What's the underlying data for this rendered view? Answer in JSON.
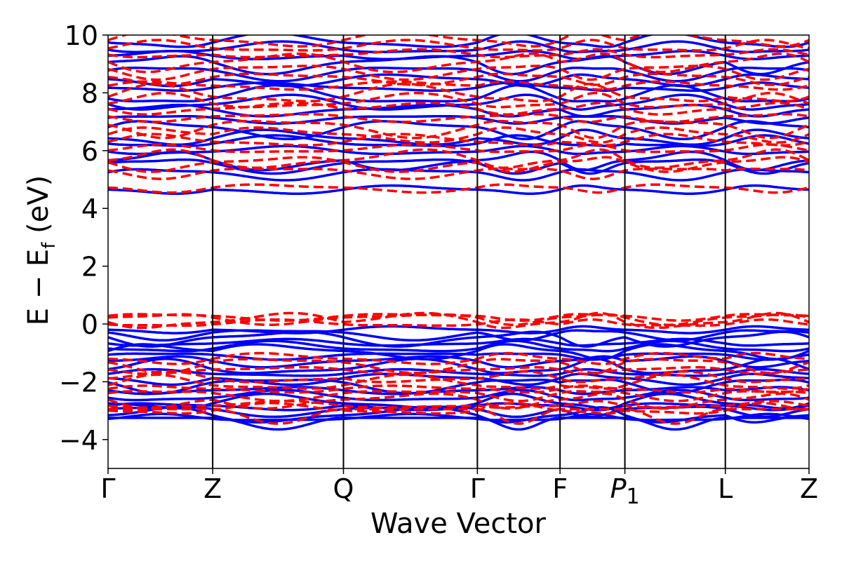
{
  "chart_data": {
    "type": "line",
    "title": "",
    "xlabel": "Wave Vector",
    "ylabel": "E − E_f (eV)",
    "ylabel_main": "E  −  E",
    "ylabel_sub": "f",
    "ylabel_tail": " (eV)",
    "ylim": [
      -5,
      10
    ],
    "xlim": [
      0,
      6.7
    ],
    "yticks": [
      -4,
      -2,
      0,
      2,
      4,
      6,
      8,
      10
    ],
    "ytick_labels": [
      "−4",
      "−2",
      "0",
      "2",
      "4",
      "6",
      "8",
      "10"
    ],
    "kpoints": [
      {
        "label": "Γ",
        "sub": "",
        "x": 0
      },
      {
        "label": "Z",
        "sub": "",
        "x": 1
      },
      {
        "label": "Q",
        "sub": "",
        "x": 2.25
      },
      {
        "label": "Γ",
        "sub": "",
        "x": 3.53
      },
      {
        "label": "F",
        "sub": "",
        "x": 4.32
      },
      {
        "label": "P",
        "sub": "1",
        "x": 4.94
      },
      {
        "label": "L",
        "sub": "",
        "x": 5.9
      },
      {
        "label": "Z",
        "sub": "",
        "x": 6.7
      }
    ],
    "grid": false,
    "legend": "none",
    "series": [
      {
        "style": "solid",
        "color": "#0000ff",
        "conduction_levels": [
          4.65,
          5.2,
          5.5,
          5.65,
          6.0,
          6.3,
          6.45,
          6.75,
          7.1,
          7.4,
          7.65,
          7.9,
          8.2,
          8.45,
          8.7,
          9.0,
          9.3,
          9.55,
          9.8
        ],
        "valence_levels": [
          -0.2,
          -0.35,
          -0.5,
          -0.65,
          -0.8,
          -0.95,
          -1.1,
          -1.3,
          -1.5,
          -1.7,
          -1.9,
          -2.1,
          -2.3,
          -2.5,
          -2.7,
          -2.85,
          -3.0,
          -3.15,
          -3.25
        ],
        "valence_min": -3.65
      },
      {
        "style": "dashed",
        "color": "#ff0000",
        "conduction_levels": [
          4.7,
          5.25,
          5.55,
          5.7,
          6.05,
          6.35,
          6.55,
          6.8,
          7.15,
          7.45,
          7.7,
          7.95,
          8.25,
          8.5,
          8.75,
          9.05,
          9.35,
          9.6,
          9.85
        ],
        "valence_levels": [
          0.25,
          0.18,
          0.1,
          0.02,
          -1.2,
          -1.4,
          -1.6,
          -1.85,
          -2.05,
          -2.25,
          -2.45,
          -2.65,
          -2.8,
          -2.95
        ],
        "valence_min": -3.45
      }
    ]
  }
}
